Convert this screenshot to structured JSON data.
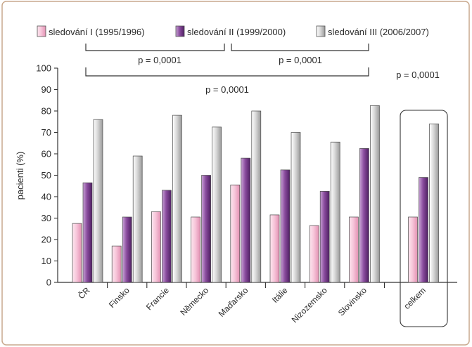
{
  "chart_data": {
    "type": "bar",
    "ylabel": "pacienti (%)",
    "ylim": [
      0,
      100
    ],
    "yticks": [
      0,
      10,
      20,
      30,
      40,
      50,
      60,
      70,
      80,
      90,
      100
    ],
    "categories": [
      "ČR",
      "Finsko",
      "Francie",
      "Německo",
      "Maďarsko",
      "Itálie",
      "Nizozemsko",
      "Slovinsko",
      "celkem"
    ],
    "highlighted_category": "celkem",
    "series": [
      {
        "name": "sledování I (1995/1996)",
        "color": "#f4b6cf",
        "values": [
          27.5,
          17,
          33,
          30.5,
          45.5,
          31.5,
          26.5,
          30.5,
          30.5
        ]
      },
      {
        "name": "sledování II (1999/2000)",
        "color": "#7d3f8f",
        "values": [
          46.5,
          30.5,
          43,
          50,
          58,
          52.5,
          42.5,
          62.5,
          49
        ]
      },
      {
        "name": "sledování III (2006/2007)",
        "color": "#c8c8c8",
        "values": [
          76,
          59,
          78,
          72.5,
          80,
          70,
          65.5,
          82.5,
          74
        ]
      }
    ],
    "legend_position": "top",
    "annotations": [
      {
        "text": "p = 0,0001",
        "between": [
          "sledování I",
          "sledování II"
        ]
      },
      {
        "text": "p = 0,0001",
        "between": [
          "sledování II",
          "sledování III"
        ]
      },
      {
        "text": "p = 0,0001",
        "between": [
          "sledování I",
          "sledování III"
        ]
      },
      {
        "text": "p = 0,0001",
        "scope": "celkem"
      }
    ]
  },
  "colors": {
    "border": "#c9a98d",
    "bracket": "#333333",
    "axis": "#333333"
  }
}
